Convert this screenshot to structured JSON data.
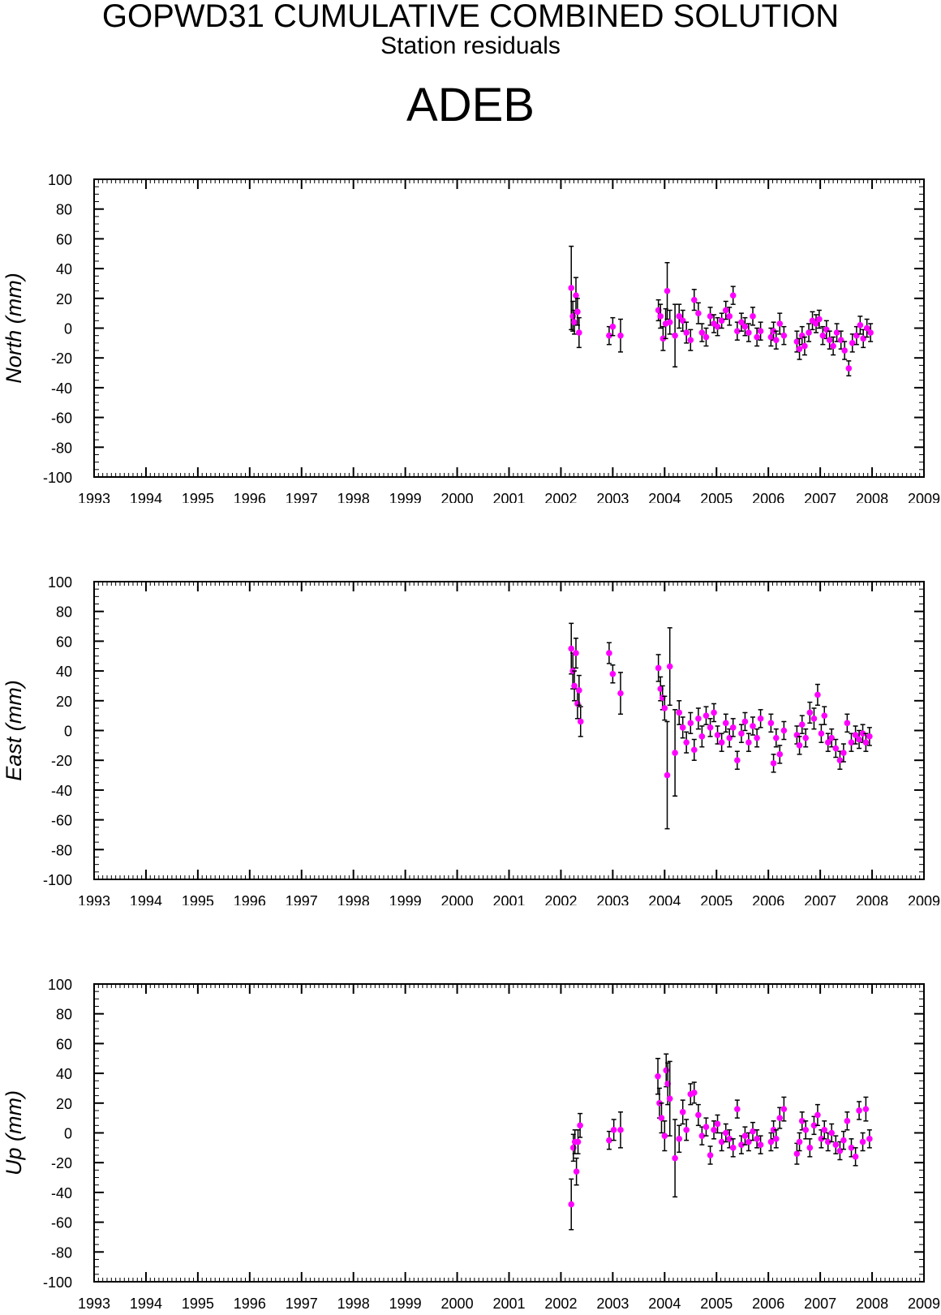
{
  "header": {
    "title": "GOPWD31 CUMULATIVE COMBINED SOLUTION",
    "subtitle": "Station residuals",
    "station": "ADEB"
  },
  "colors": {
    "point": "#ff00ff",
    "errorbar": "#000000",
    "axis": "#000000"
  },
  "chart_data": [
    {
      "type": "scatter",
      "ylabel": "North (mm)",
      "xlim": [
        1993,
        2009
      ],
      "ylim": [
        -100,
        100
      ],
      "x_ticks": [
        "1993",
        "1994",
        "1995",
        "1996",
        "1997",
        "1998",
        "1999",
        "2000",
        "2001",
        "2002",
        "2003",
        "2004",
        "2005",
        "2006",
        "2007",
        "2008",
        "2009"
      ],
      "y_ticks": [
        "100",
        "80",
        "60",
        "40",
        "20",
        "0",
        "-20",
        "-40",
        "-60",
        "-80",
        "-100"
      ],
      "grid": false,
      "points": [
        {
          "x": 2002.2,
          "y": 27,
          "e": 28
        },
        {
          "x": 2002.23,
          "y": 8,
          "e": 10
        },
        {
          "x": 2002.26,
          "y": 4,
          "e": 8
        },
        {
          "x": 2002.29,
          "y": 22,
          "e": 12
        },
        {
          "x": 2002.32,
          "y": 11,
          "e": 9
        },
        {
          "x": 2002.35,
          "y": -3,
          "e": 10
        },
        {
          "x": 2002.93,
          "y": -5,
          "e": 6
        },
        {
          "x": 2003.0,
          "y": 1,
          "e": 6
        },
        {
          "x": 2003.15,
          "y": -5,
          "e": 11
        },
        {
          "x": 2003.88,
          "y": 12,
          "e": 7
        },
        {
          "x": 2003.92,
          "y": 8,
          "e": 8
        },
        {
          "x": 2003.97,
          "y": -7,
          "e": 8
        },
        {
          "x": 2004.02,
          "y": 3,
          "e": 10
        },
        {
          "x": 2004.05,
          "y": 25,
          "e": 19
        },
        {
          "x": 2004.1,
          "y": 4,
          "e": 8
        },
        {
          "x": 2004.2,
          "y": -5,
          "e": 21
        },
        {
          "x": 2004.28,
          "y": 8,
          "e": 8
        },
        {
          "x": 2004.35,
          "y": 5,
          "e": 7
        },
        {
          "x": 2004.42,
          "y": -3,
          "e": 7
        },
        {
          "x": 2004.5,
          "y": -8,
          "e": 7
        },
        {
          "x": 2004.57,
          "y": 19,
          "e": 7
        },
        {
          "x": 2004.65,
          "y": 10,
          "e": 7
        },
        {
          "x": 2004.72,
          "y": -3,
          "e": 6
        },
        {
          "x": 2004.8,
          "y": -6,
          "e": 6
        },
        {
          "x": 2004.88,
          "y": 8,
          "e": 6
        },
        {
          "x": 2004.95,
          "y": 3,
          "e": 6
        },
        {
          "x": 2005.02,
          "y": 1,
          "e": 6
        },
        {
          "x": 2005.1,
          "y": 5,
          "e": 5
        },
        {
          "x": 2005.18,
          "y": 12,
          "e": 6
        },
        {
          "x": 2005.25,
          "y": 8,
          "e": 6
        },
        {
          "x": 2005.32,
          "y": 22,
          "e": 6
        },
        {
          "x": 2005.4,
          "y": -2,
          "e": 6
        },
        {
          "x": 2005.48,
          "y": 4,
          "e": 6
        },
        {
          "x": 2005.55,
          "y": 1,
          "e": 6
        },
        {
          "x": 2005.62,
          "y": -3,
          "e": 6
        },
        {
          "x": 2005.7,
          "y": 8,
          "e": 6
        },
        {
          "x": 2005.78,
          "y": -6,
          "e": 6
        },
        {
          "x": 2005.85,
          "y": -2,
          "e": 6
        },
        {
          "x": 2006.05,
          "y": -6,
          "e": 6
        },
        {
          "x": 2006.1,
          "y": -2,
          "e": 6
        },
        {
          "x": 2006.15,
          "y": -8,
          "e": 6
        },
        {
          "x": 2006.22,
          "y": 3,
          "e": 7
        },
        {
          "x": 2006.3,
          "y": -5,
          "e": 6
        },
        {
          "x": 2006.55,
          "y": -9,
          "e": 7
        },
        {
          "x": 2006.6,
          "y": -14,
          "e": 7
        },
        {
          "x": 2006.65,
          "y": -5,
          "e": 6
        },
        {
          "x": 2006.7,
          "y": -12,
          "e": 6
        },
        {
          "x": 2006.78,
          "y": -3,
          "e": 6
        },
        {
          "x": 2006.85,
          "y": 5,
          "e": 6
        },
        {
          "x": 2006.92,
          "y": 3,
          "e": 6
        },
        {
          "x": 2006.98,
          "y": 6,
          "e": 6
        },
        {
          "x": 2007.05,
          "y": -5,
          "e": 6
        },
        {
          "x": 2007.12,
          "y": -1,
          "e": 6
        },
        {
          "x": 2007.18,
          "y": -8,
          "e": 6
        },
        {
          "x": 2007.25,
          "y": -12,
          "e": 6
        },
        {
          "x": 2007.32,
          "y": -3,
          "e": 6
        },
        {
          "x": 2007.4,
          "y": -8,
          "e": 6
        },
        {
          "x": 2007.47,
          "y": -15,
          "e": 6
        },
        {
          "x": 2007.55,
          "y": -27,
          "e": 5
        },
        {
          "x": 2007.62,
          "y": -10,
          "e": 6
        },
        {
          "x": 2007.7,
          "y": -5,
          "e": 6
        },
        {
          "x": 2007.77,
          "y": 2,
          "e": 6
        },
        {
          "x": 2007.83,
          "y": -7,
          "e": 6
        },
        {
          "x": 2007.9,
          "y": 0,
          "e": 6
        },
        {
          "x": 2007.97,
          "y": -3,
          "e": 6
        }
      ]
    },
    {
      "type": "scatter",
      "ylabel": "East (mm)",
      "xlim": [
        1993,
        2009
      ],
      "ylim": [
        -100,
        100
      ],
      "x_ticks": [
        "1993",
        "1994",
        "1995",
        "1996",
        "1997",
        "1998",
        "1999",
        "2000",
        "2001",
        "2002",
        "2003",
        "2004",
        "2005",
        "2006",
        "2007",
        "2008",
        "2009"
      ],
      "y_ticks": [
        "100",
        "80",
        "60",
        "40",
        "20",
        "0",
        "-20",
        "-40",
        "-60",
        "-80",
        "-100"
      ],
      "grid": false,
      "points": [
        {
          "x": 2002.2,
          "y": 55,
          "e": 17
        },
        {
          "x": 2002.23,
          "y": 40,
          "e": 12
        },
        {
          "x": 2002.26,
          "y": 30,
          "e": 10
        },
        {
          "x": 2002.29,
          "y": 52,
          "e": 10
        },
        {
          "x": 2002.32,
          "y": 18,
          "e": 10
        },
        {
          "x": 2002.35,
          "y": 27,
          "e": 10
        },
        {
          "x": 2002.38,
          "y": 6,
          "e": 10
        },
        {
          "x": 2002.93,
          "y": 52,
          "e": 7
        },
        {
          "x": 2003.0,
          "y": 38,
          "e": 6
        },
        {
          "x": 2003.15,
          "y": 25,
          "e": 14
        },
        {
          "x": 2003.88,
          "y": 42,
          "e": 9
        },
        {
          "x": 2003.92,
          "y": 28,
          "e": 8
        },
        {
          "x": 2003.96,
          "y": 22,
          "e": 8
        },
        {
          "x": 2004.0,
          "y": 15,
          "e": 8
        },
        {
          "x": 2004.05,
          "y": -30,
          "e": 36
        },
        {
          "x": 2004.1,
          "y": 43,
          "e": 26
        },
        {
          "x": 2004.2,
          "y": -15,
          "e": 29
        },
        {
          "x": 2004.28,
          "y": 12,
          "e": 8
        },
        {
          "x": 2004.35,
          "y": 2,
          "e": 7
        },
        {
          "x": 2004.42,
          "y": -8,
          "e": 7
        },
        {
          "x": 2004.5,
          "y": 5,
          "e": 7
        },
        {
          "x": 2004.57,
          "y": -13,
          "e": 7
        },
        {
          "x": 2004.65,
          "y": 8,
          "e": 7
        },
        {
          "x": 2004.72,
          "y": -4,
          "e": 7
        },
        {
          "x": 2004.8,
          "y": 10,
          "e": 6
        },
        {
          "x": 2004.88,
          "y": 2,
          "e": 6
        },
        {
          "x": 2004.95,
          "y": 12,
          "e": 6
        },
        {
          "x": 2005.02,
          "y": -3,
          "e": 6
        },
        {
          "x": 2005.1,
          "y": -8,
          "e": 6
        },
        {
          "x": 2005.18,
          "y": 5,
          "e": 6
        },
        {
          "x": 2005.25,
          "y": -5,
          "e": 6
        },
        {
          "x": 2005.32,
          "y": 2,
          "e": 6
        },
        {
          "x": 2005.4,
          "y": -20,
          "e": 6
        },
        {
          "x": 2005.48,
          "y": -2,
          "e": 6
        },
        {
          "x": 2005.55,
          "y": 6,
          "e": 6
        },
        {
          "x": 2005.62,
          "y": -8,
          "e": 6
        },
        {
          "x": 2005.7,
          "y": 3,
          "e": 6
        },
        {
          "x": 2005.78,
          "y": -5,
          "e": 6
        },
        {
          "x": 2005.85,
          "y": 8,
          "e": 6
        },
        {
          "x": 2006.05,
          "y": 5,
          "e": 6
        },
        {
          "x": 2006.1,
          "y": -22,
          "e": 6
        },
        {
          "x": 2006.15,
          "y": -5,
          "e": 6
        },
        {
          "x": 2006.22,
          "y": -16,
          "e": 6
        },
        {
          "x": 2006.3,
          "y": 0,
          "e": 6
        },
        {
          "x": 2006.55,
          "y": -3,
          "e": 6
        },
        {
          "x": 2006.6,
          "y": -10,
          "e": 6
        },
        {
          "x": 2006.65,
          "y": 4,
          "e": 6
        },
        {
          "x": 2006.72,
          "y": -5,
          "e": 6
        },
        {
          "x": 2006.8,
          "y": 12,
          "e": 7
        },
        {
          "x": 2006.88,
          "y": 8,
          "e": 7
        },
        {
          "x": 2006.95,
          "y": 24,
          "e": 7
        },
        {
          "x": 2007.02,
          "y": -2,
          "e": 6
        },
        {
          "x": 2007.08,
          "y": 10,
          "e": 6
        },
        {
          "x": 2007.15,
          "y": -8,
          "e": 6
        },
        {
          "x": 2007.22,
          "y": -5,
          "e": 6
        },
        {
          "x": 2007.3,
          "y": -12,
          "e": 6
        },
        {
          "x": 2007.38,
          "y": -20,
          "e": 6
        },
        {
          "x": 2007.45,
          "y": -15,
          "e": 6
        },
        {
          "x": 2007.52,
          "y": 5,
          "e": 6
        },
        {
          "x": 2007.6,
          "y": -8,
          "e": 6
        },
        {
          "x": 2007.68,
          "y": -3,
          "e": 6
        },
        {
          "x": 2007.75,
          "y": -6,
          "e": 6
        },
        {
          "x": 2007.82,
          "y": -2,
          "e": 6
        },
        {
          "x": 2007.88,
          "y": -8,
          "e": 6
        },
        {
          "x": 2007.95,
          "y": -4,
          "e": 6
        }
      ]
    },
    {
      "type": "scatter",
      "ylabel": "Up (mm)",
      "xlim": [
        1993,
        2009
      ],
      "ylim": [
        -100,
        100
      ],
      "x_ticks": [
        "1993",
        "1994",
        "1995",
        "1996",
        "1997",
        "1998",
        "1999",
        "2000",
        "2001",
        "2002",
        "2003",
        "2004",
        "2005",
        "2006",
        "2007",
        "2008",
        "2009"
      ],
      "y_ticks": [
        "100",
        "80",
        "60",
        "40",
        "20",
        "0",
        "-20",
        "-40",
        "-60",
        "-80",
        "-100"
      ],
      "grid": false,
      "points": [
        {
          "x": 2002.2,
          "y": -48,
          "e": 17
        },
        {
          "x": 2002.24,
          "y": -10,
          "e": 9
        },
        {
          "x": 2002.27,
          "y": -6,
          "e": 8
        },
        {
          "x": 2002.3,
          "y": -26,
          "e": 9
        },
        {
          "x": 2002.33,
          "y": -6,
          "e": 8
        },
        {
          "x": 2002.37,
          "y": 5,
          "e": 8
        },
        {
          "x": 2002.93,
          "y": -5,
          "e": 6
        },
        {
          "x": 2003.02,
          "y": 2,
          "e": 7
        },
        {
          "x": 2003.15,
          "y": 2,
          "e": 12
        },
        {
          "x": 2003.87,
          "y": 38,
          "e": 12
        },
        {
          "x": 2003.9,
          "y": 20,
          "e": 10
        },
        {
          "x": 2003.94,
          "y": 10,
          "e": 10
        },
        {
          "x": 2004.0,
          "y": -2,
          "e": 10
        },
        {
          "x": 2004.03,
          "y": 42,
          "e": 11
        },
        {
          "x": 2004.06,
          "y": 33,
          "e": 14
        },
        {
          "x": 2004.1,
          "y": 23,
          "e": 25
        },
        {
          "x": 2004.2,
          "y": -17,
          "e": 26
        },
        {
          "x": 2004.28,
          "y": -4,
          "e": 9
        },
        {
          "x": 2004.35,
          "y": 14,
          "e": 8
        },
        {
          "x": 2004.42,
          "y": 2,
          "e": 7
        },
        {
          "x": 2004.5,
          "y": 26,
          "e": 7
        },
        {
          "x": 2004.57,
          "y": 27,
          "e": 7
        },
        {
          "x": 2004.65,
          "y": 12,
          "e": 7
        },
        {
          "x": 2004.72,
          "y": -2,
          "e": 6
        },
        {
          "x": 2004.8,
          "y": 4,
          "e": 6
        },
        {
          "x": 2004.88,
          "y": -15,
          "e": 6
        },
        {
          "x": 2004.95,
          "y": 2,
          "e": 6
        },
        {
          "x": 2005.02,
          "y": 6,
          "e": 6
        },
        {
          "x": 2005.1,
          "y": -6,
          "e": 6
        },
        {
          "x": 2005.18,
          "y": 0,
          "e": 6
        },
        {
          "x": 2005.25,
          "y": -4,
          "e": 6
        },
        {
          "x": 2005.32,
          "y": -10,
          "e": 6
        },
        {
          "x": 2005.4,
          "y": 16,
          "e": 6
        },
        {
          "x": 2005.48,
          "y": -8,
          "e": 6
        },
        {
          "x": 2005.55,
          "y": -2,
          "e": 6
        },
        {
          "x": 2005.62,
          "y": -6,
          "e": 6
        },
        {
          "x": 2005.7,
          "y": 1,
          "e": 6
        },
        {
          "x": 2005.78,
          "y": -4,
          "e": 6
        },
        {
          "x": 2005.85,
          "y": -8,
          "e": 6
        },
        {
          "x": 2006.05,
          "y": -6,
          "e": 6
        },
        {
          "x": 2006.1,
          "y": 2,
          "e": 6
        },
        {
          "x": 2006.15,
          "y": -4,
          "e": 6
        },
        {
          "x": 2006.22,
          "y": 10,
          "e": 7
        },
        {
          "x": 2006.3,
          "y": 16,
          "e": 8
        },
        {
          "x": 2006.55,
          "y": -14,
          "e": 7
        },
        {
          "x": 2006.6,
          "y": -6,
          "e": 6
        },
        {
          "x": 2006.65,
          "y": 8,
          "e": 6
        },
        {
          "x": 2006.72,
          "y": 2,
          "e": 6
        },
        {
          "x": 2006.8,
          "y": -10,
          "e": 6
        },
        {
          "x": 2006.88,
          "y": 5,
          "e": 6
        },
        {
          "x": 2006.95,
          "y": 12,
          "e": 7
        },
        {
          "x": 2007.02,
          "y": -4,
          "e": 6
        },
        {
          "x": 2007.08,
          "y": 2,
          "e": 6
        },
        {
          "x": 2007.15,
          "y": -6,
          "e": 6
        },
        {
          "x": 2007.22,
          "y": 0,
          "e": 6
        },
        {
          "x": 2007.3,
          "y": -8,
          "e": 6
        },
        {
          "x": 2007.38,
          "y": -12,
          "e": 6
        },
        {
          "x": 2007.45,
          "y": -5,
          "e": 6
        },
        {
          "x": 2007.52,
          "y": 8,
          "e": 6
        },
        {
          "x": 2007.6,
          "y": -10,
          "e": 6
        },
        {
          "x": 2007.68,
          "y": -16,
          "e": 6
        },
        {
          "x": 2007.75,
          "y": 15,
          "e": 6
        },
        {
          "x": 2007.82,
          "y": -6,
          "e": 6
        },
        {
          "x": 2007.88,
          "y": 16,
          "e": 8
        },
        {
          "x": 2007.95,
          "y": -4,
          "e": 6
        }
      ]
    }
  ]
}
